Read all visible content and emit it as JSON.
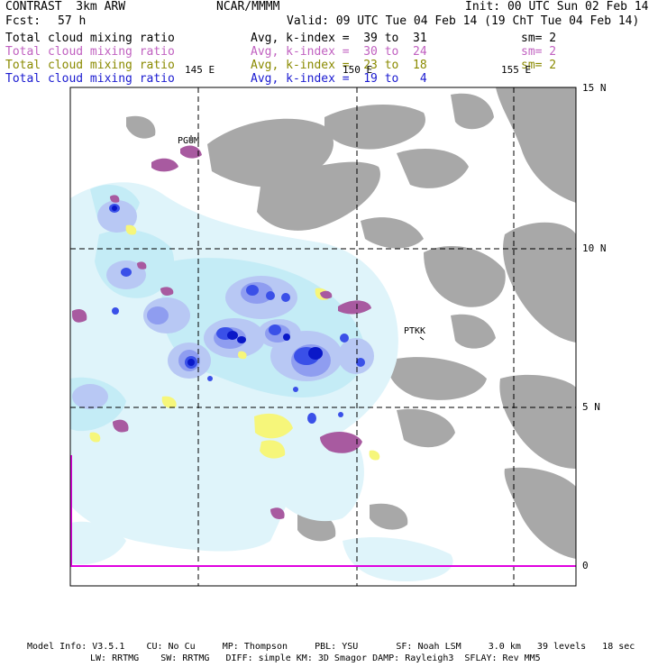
{
  "header": {
    "model": "CONTRAST  3km ARW",
    "org": "NCAR/MMMM",
    "init": "Init: 00 UTC Sun 02 Feb 14",
    "fcst_label": "Fcst:",
    "fcst_value": "57 h",
    "valid": "Valid: 09 UTC Tue 04 Feb 14 (19 ChT Tue 04 Feb 14)"
  },
  "fields": [
    {
      "name": "Total cloud mixing ratio",
      "stat": "Avg, k-index =  39 to  31",
      "sm": "sm= 2",
      "color": "#000000"
    },
    {
      "name": "Total cloud mixing ratio",
      "stat": "Avg, k-index =  30 to  24",
      "sm": "sm= 2",
      "color": "#c060c0"
    },
    {
      "name": "Total cloud mixing ratio",
      "stat": "Avg, k-index =  23 to  18",
      "sm": "sm= 2",
      "color": "#8a8a00"
    },
    {
      "name": "Total cloud mixing ratio",
      "stat": "Avg, k-index =  19 to   4",
      "sm": "",
      "color": "#1a1ad0"
    }
  ],
  "map": {
    "lon_labels": [
      "145 E",
      "150 E",
      "155 E"
    ],
    "lat_labels": [
      "15 N",
      "10 N",
      "5 N",
      "0"
    ],
    "stations": [
      "PGUM",
      "PTKK"
    ],
    "colors": {
      "gray": "#a8a8a8",
      "pink": "#a85aa0",
      "yellow": "#f6f67a",
      "cyan_light": "#dff4fa",
      "cyan": "#c4ecf6",
      "lav_light": "#b8c8f4",
      "lav": "#8f9df0",
      "blue": "#3a50e8",
      "navy": "#0a18c8",
      "magenta": "#e000e0"
    }
  },
  "footer": {
    "line1": "Model Info: V3.5.1    CU: No Cu     MP: Thompson     PBL: YSU       SF: Noah LSM     3.0 km   39 levels   18 sec",
    "line2": "LW: RRTMG    SW: RRTMG   DIFF: simple KM: 3D Smagor DAMP: Rayleigh3  SFLAY: Rev MM5"
  }
}
